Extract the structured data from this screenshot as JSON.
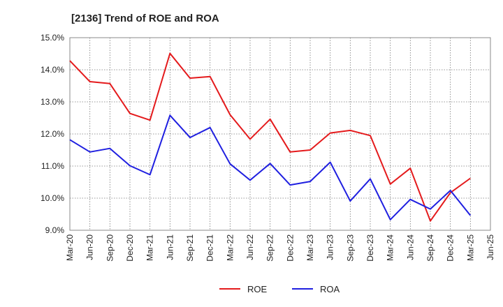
{
  "chart_data": {
    "type": "line",
    "title": "[2136]  Trend of ROE and ROA",
    "xlabel": "",
    "ylabel": "",
    "categories": [
      "Mar-20",
      "Jun-20",
      "Sep-20",
      "Dec-20",
      "Mar-21",
      "Jun-21",
      "Sep-21",
      "Dec-21",
      "Mar-22",
      "Jun-22",
      "Sep-22",
      "Dec-22",
      "Mar-23",
      "Jun-23",
      "Sep-23",
      "Dec-23",
      "Mar-24",
      "Jun-24",
      "Sep-24",
      "Dec-24",
      "Mar-25",
      "Jun-25"
    ],
    "ylim": [
      9.0,
      15.0
    ],
    "yticks": [
      "9.0%",
      "10.0%",
      "11.0%",
      "12.0%",
      "13.0%",
      "14.0%",
      "15.0%"
    ],
    "ytick_values": [
      9,
      10,
      11,
      12,
      13,
      14,
      15
    ],
    "grid": true,
    "legend_position": "bottom-center",
    "series": [
      {
        "name": "ROE",
        "color": "#e41a1c",
        "values": [
          14.28,
          13.63,
          13.57,
          12.64,
          12.43,
          14.51,
          13.74,
          13.79,
          12.6,
          11.84,
          12.46,
          11.44,
          11.5,
          12.03,
          12.11,
          11.95,
          10.44,
          10.93,
          9.29,
          10.17,
          10.62,
          null
        ]
      },
      {
        "name": "ROA",
        "color": "#1f1fe0",
        "values": [
          11.82,
          11.44,
          11.55,
          11.01,
          10.73,
          12.58,
          11.89,
          12.2,
          11.07,
          10.56,
          11.08,
          10.41,
          10.52,
          11.12,
          9.91,
          10.6,
          9.33,
          9.96,
          9.66,
          10.24,
          9.46,
          null
        ]
      }
    ]
  }
}
